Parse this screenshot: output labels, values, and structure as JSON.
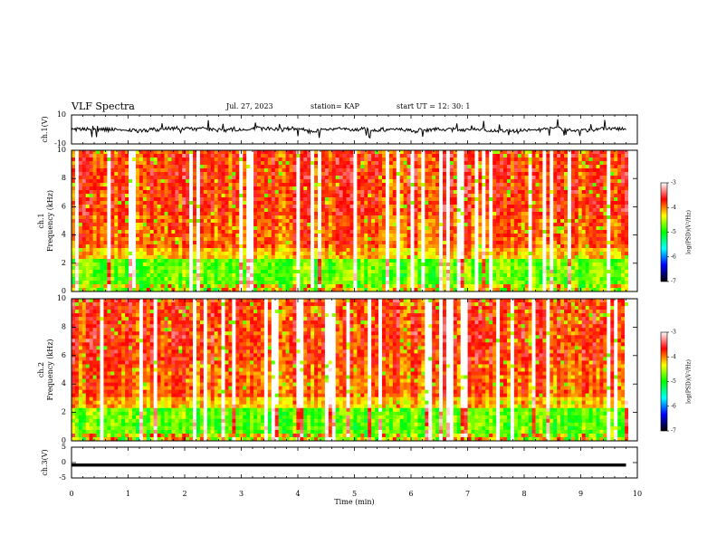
{
  "header": {
    "title": "VLF Spectra",
    "date": "Jul. 27, 2023",
    "station": "station= KAP",
    "start_time": "start UT = 12: 30: 1"
  },
  "colors": {
    "background": "#ffffff",
    "trace": "#000000",
    "spectrogram_ramp": [
      "#000000",
      "#0000ff",
      "#00ffff",
      "#00ff00",
      "#ffff00",
      "#ff0000",
      "#ffffff"
    ]
  },
  "chart_data": [
    {
      "type": "line",
      "panel": "ch1-waveform",
      "ylabel": "ch.1(V)",
      "ylim": [
        -10,
        10
      ],
      "yticks": [
        "10",
        "-10"
      ],
      "xlim": [
        0,
        10
      ],
      "note_series": "noisy waveform envelope roughly between -4 and 4 V",
      "series": [
        {
          "values_range": [
            -4,
            4
          ]
        }
      ]
    },
    {
      "type": "heatmap",
      "panel": "ch1-spectrogram",
      "ylabel": "ch.1",
      "ylabel2": "Frequency (kHz)",
      "ylim": [
        0,
        10
      ],
      "yticks": [
        "0",
        "2",
        "4",
        "6",
        "8",
        "10"
      ],
      "xlim": [
        0,
        10
      ],
      "colorbar": {
        "label": "log(PSD)(V²/Hz)",
        "range": [
          -7,
          -3
        ],
        "ticks": [
          "-3",
          "-4",
          "-5",
          "-6",
          "-7"
        ]
      }
    },
    {
      "type": "heatmap",
      "panel": "ch2-spectrogram",
      "ylabel": "ch.2",
      "ylabel2": "Frequency (kHz)",
      "ylim": [
        0,
        10
      ],
      "yticks": [
        "0",
        "2",
        "4",
        "6",
        "8",
        "10"
      ],
      "xlim": [
        0,
        10
      ],
      "colorbar": {
        "label": "log(PSD)(V²/Hz)",
        "range": [
          -7,
          -3
        ],
        "ticks": [
          "-3",
          "-4",
          "-5",
          "-6",
          "-7"
        ]
      }
    },
    {
      "type": "line",
      "panel": "ch3-waveform",
      "ylabel": "ch.3(V)",
      "ylim": [
        -5,
        5
      ],
      "yticks": [
        "5",
        "0",
        "-5"
      ],
      "xlim": [
        0,
        10
      ],
      "series": [
        {
          "values_range": [
            -1.3,
            -0.3
          ]
        }
      ]
    }
  ],
  "xaxis": {
    "label": "Time (min)",
    "ticks": [
      "0",
      "1",
      "2",
      "3",
      "4",
      "5",
      "6",
      "7",
      "8",
      "9",
      "10"
    ]
  }
}
